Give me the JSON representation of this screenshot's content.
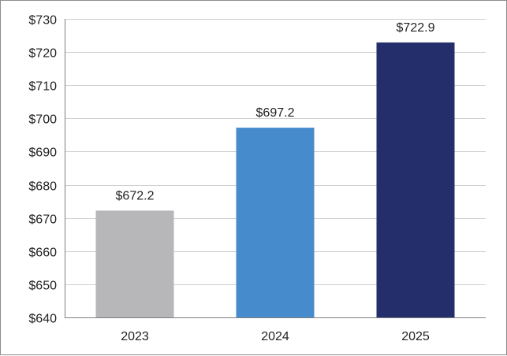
{
  "chart_data": {
    "type": "bar",
    "categories": [
      "2023",
      "2024",
      "2025"
    ],
    "values": [
      672.2,
      697.2,
      722.9
    ],
    "data_labels": [
      "$672.2",
      "$697.2",
      "$722.9"
    ],
    "bar_colors": [
      "#b7b6b8",
      "#468bcb",
      "#232e6b"
    ],
    "title": "",
    "xlabel": "",
    "ylabel": "",
    "ylim": [
      640,
      730
    ],
    "y_ticks": [
      640,
      650,
      660,
      670,
      680,
      690,
      700,
      710,
      720,
      730
    ],
    "y_tick_labels": [
      "$640",
      "$650",
      "$660",
      "$670",
      "$680",
      "$690",
      "$700",
      "$710",
      "$720",
      "$730"
    ],
    "grid": true,
    "legend": "none"
  },
  "colors": {
    "grid": "#d0d0d0",
    "axis": "#7f7f7f",
    "text": "#222222"
  }
}
